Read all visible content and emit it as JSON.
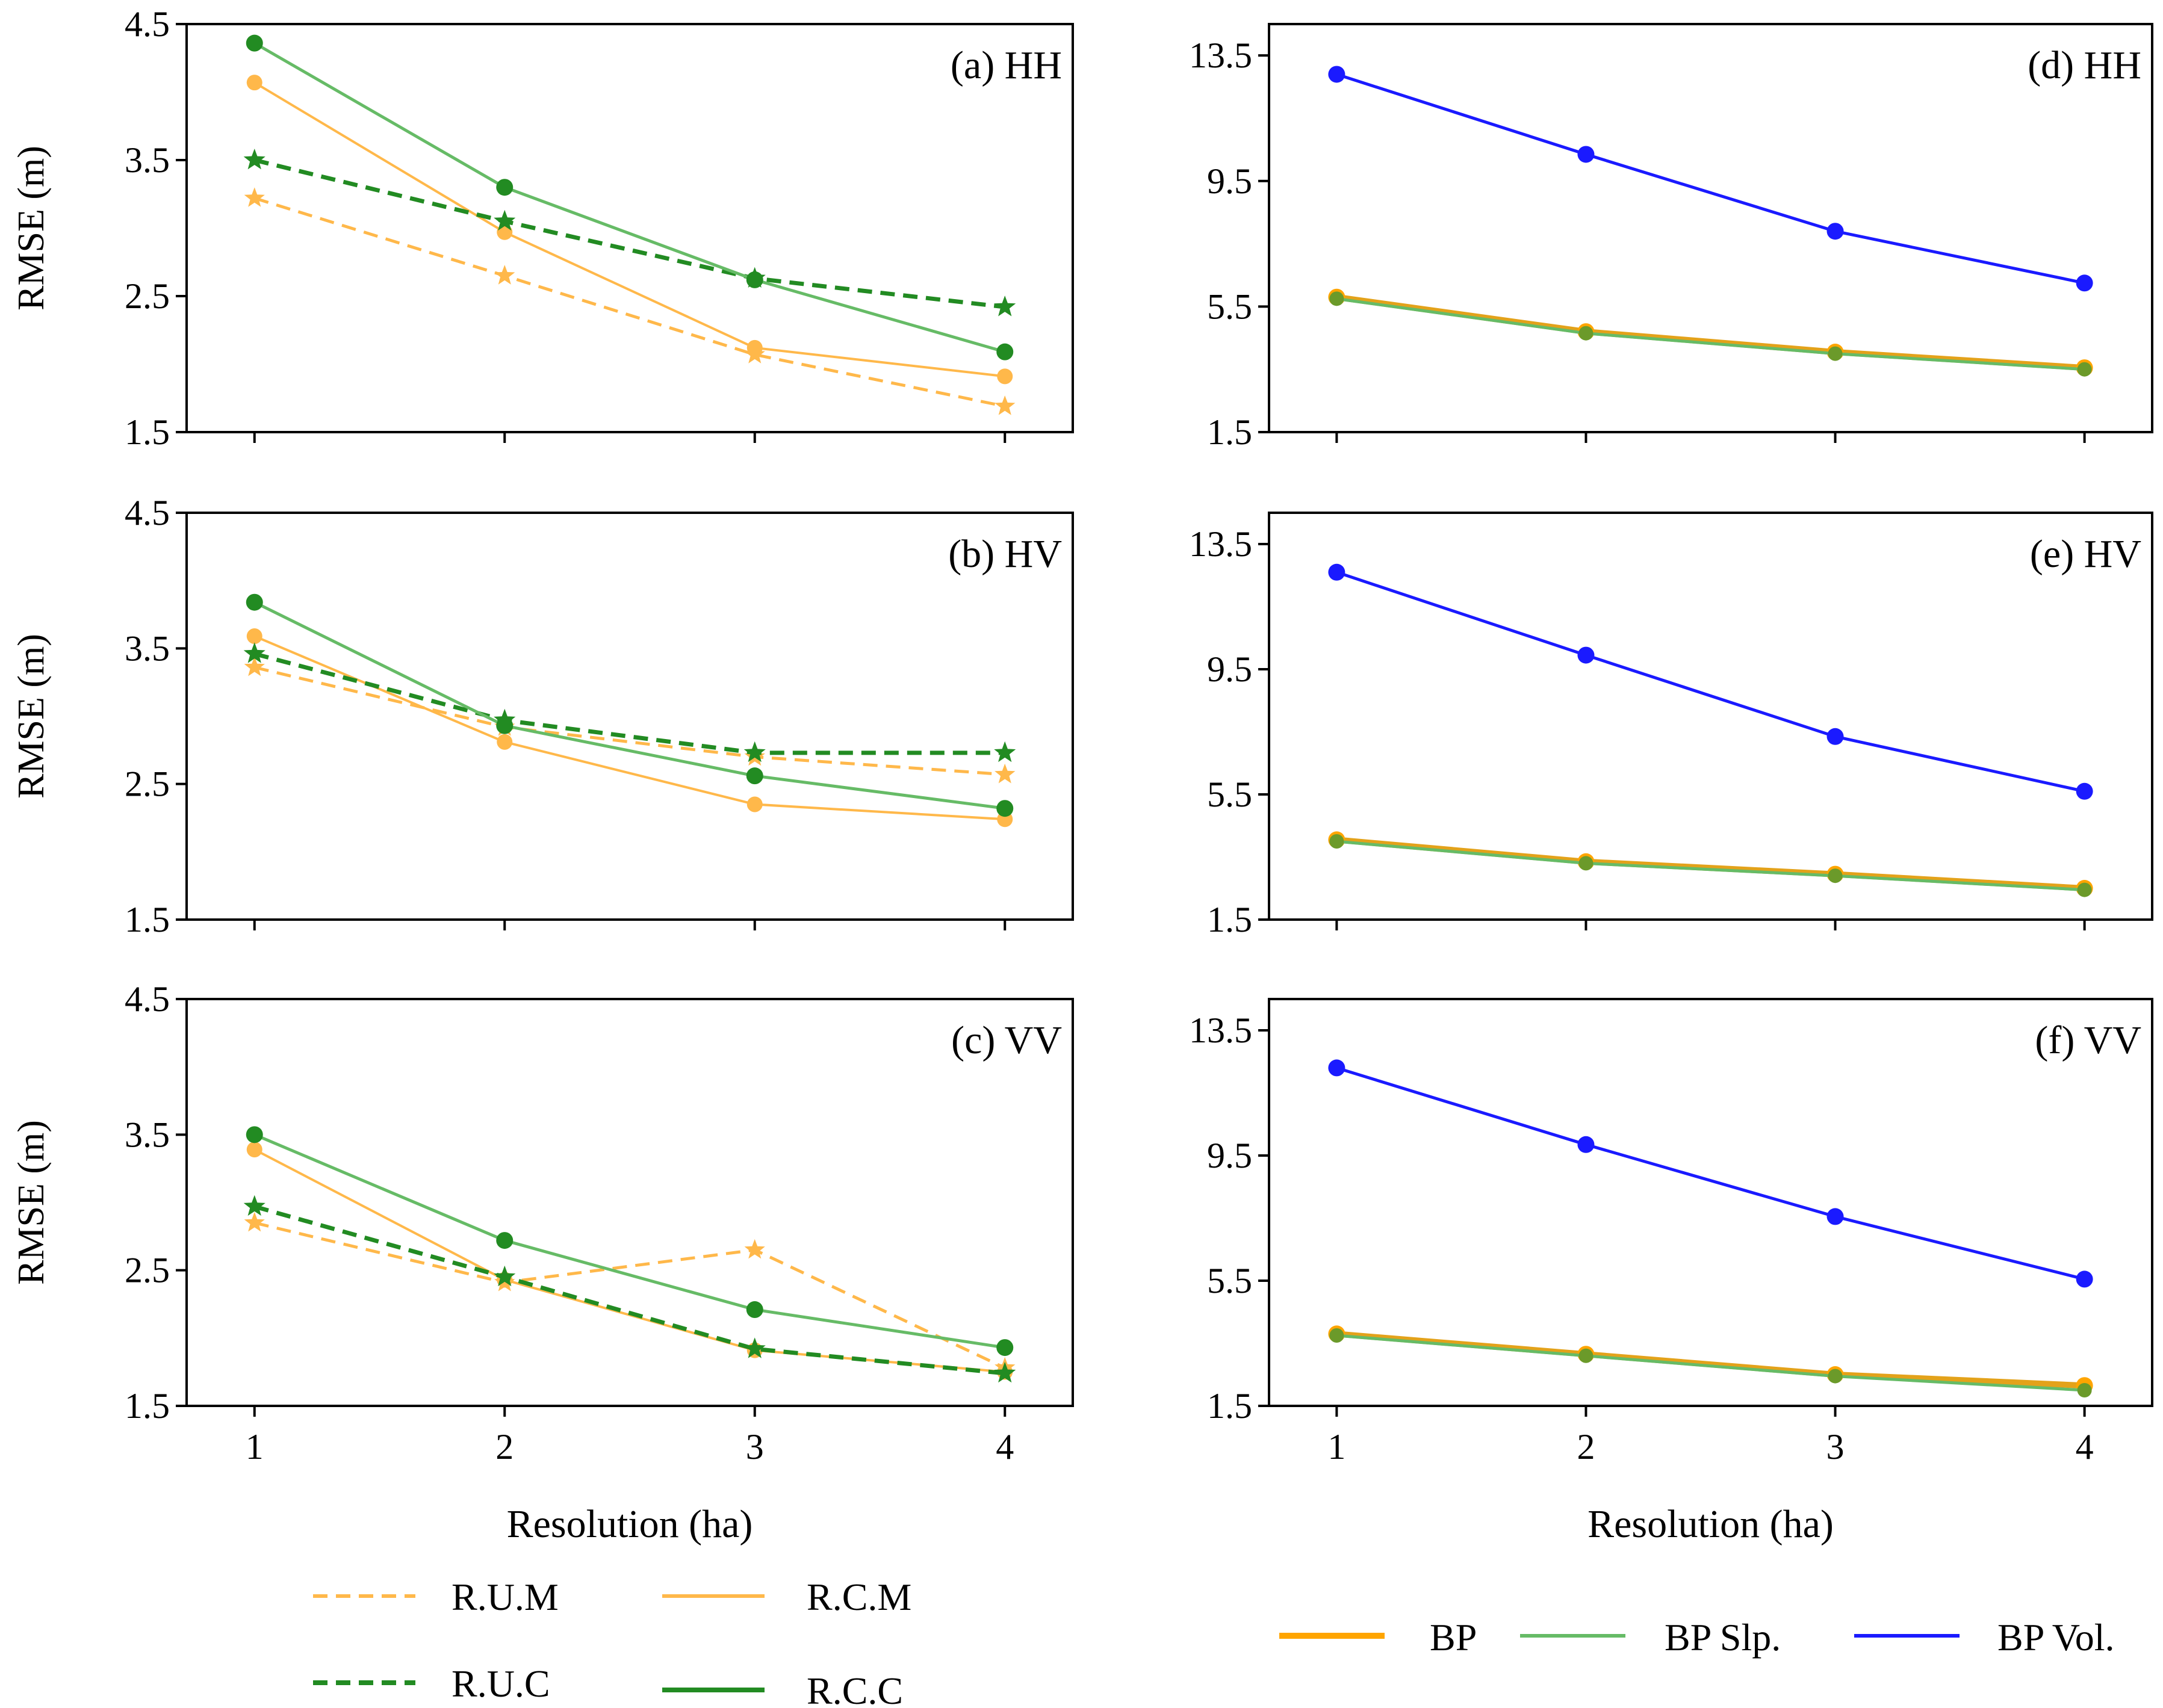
{
  "chart_data": [
    {
      "type": "line",
      "title": "(a) HH",
      "xlabel": "",
      "ylabel": "RMSE (m)",
      "x": [
        1,
        2,
        3,
        4
      ],
      "xticks": [
        "1",
        "2",
        "3",
        "4"
      ],
      "ylim": [
        1.5,
        4.5
      ],
      "yticks": [
        "1.5",
        "2.5",
        "3.5",
        "4.5"
      ],
      "series": [
        {
          "name": "R.U.M",
          "values": [
            3.22,
            2.65,
            2.07,
            1.69
          ]
        },
        {
          "name": "R.C.M",
          "values": [
            4.07,
            2.97,
            2.12,
            1.91
          ]
        },
        {
          "name": "R.U.C",
          "values": [
            3.5,
            3.05,
            2.63,
            2.42
          ]
        },
        {
          "name": "R.C.C",
          "values": [
            4.36,
            3.3,
            2.62,
            2.09
          ]
        }
      ]
    },
    {
      "type": "line",
      "title": "(b) HV",
      "xlabel": "",
      "ylabel": "RMSE (m)",
      "x": [
        1,
        2,
        3,
        4
      ],
      "xticks": [
        "1",
        "2",
        "3",
        "4"
      ],
      "ylim": [
        1.5,
        4.5
      ],
      "yticks": [
        "1.5",
        "2.5",
        "3.5",
        "4.5"
      ],
      "series": [
        {
          "name": "R.U.M",
          "values": [
            3.36,
            2.92,
            2.7,
            2.57
          ]
        },
        {
          "name": "R.C.M",
          "values": [
            3.59,
            2.81,
            2.35,
            2.24
          ]
        },
        {
          "name": "R.U.C",
          "values": [
            3.46,
            2.97,
            2.73,
            2.73
          ]
        },
        {
          "name": "R.C.C",
          "values": [
            3.84,
            2.93,
            2.56,
            2.32
          ]
        }
      ]
    },
    {
      "type": "line",
      "title": "(c) VV",
      "xlabel": "Resolution (ha)",
      "ylabel": "RMSE (m)",
      "x": [
        1,
        2,
        3,
        4
      ],
      "xticks": [
        "1",
        "2",
        "3",
        "4"
      ],
      "ylim": [
        1.5,
        4.5
      ],
      "yticks": [
        "1.5",
        "2.5",
        "3.5",
        "4.5"
      ],
      "series": [
        {
          "name": "R.U.M",
          "values": [
            2.85,
            2.41,
            2.65,
            1.78
          ]
        },
        {
          "name": "R.C.M",
          "values": [
            3.39,
            2.43,
            1.91,
            1.75
          ]
        },
        {
          "name": "R.U.C",
          "values": [
            2.97,
            2.45,
            1.92,
            1.74
          ]
        },
        {
          "name": "R.C.C",
          "values": [
            3.5,
            2.72,
            2.21,
            1.93
          ]
        }
      ]
    },
    {
      "type": "line",
      "title": "(d) HH",
      "xlabel": "",
      "ylabel": "",
      "x": [
        1,
        2,
        3,
        4
      ],
      "xticks": [
        "1",
        "2",
        "3",
        "4"
      ],
      "ylim": [
        1.5,
        14.5
      ],
      "yticks": [
        "1.5",
        "5.5",
        "9.5",
        "13.5"
      ],
      "series": [
        {
          "name": "BP",
          "values": [
            5.8,
            4.7,
            4.05,
            3.55
          ]
        },
        {
          "name": "BP Slp.",
          "values": [
            5.75,
            4.65,
            4.0,
            3.5
          ]
        },
        {
          "name": "BP Vol.",
          "values": [
            12.9,
            10.35,
            7.9,
            6.25
          ]
        }
      ]
    },
    {
      "type": "line",
      "title": "(e) HV",
      "xlabel": "",
      "ylabel": "",
      "x": [
        1,
        2,
        3,
        4
      ],
      "xticks": [
        "1",
        "2",
        "3",
        "4"
      ],
      "ylim": [
        1.5,
        14.5
      ],
      "yticks": [
        "1.5",
        "5.5",
        "9.5",
        "13.5"
      ],
      "series": [
        {
          "name": "BP",
          "values": [
            4.05,
            3.35,
            2.95,
            2.5
          ]
        },
        {
          "name": "BP Slp.",
          "values": [
            4.0,
            3.3,
            2.9,
            2.45
          ]
        },
        {
          "name": "BP Vol.",
          "values": [
            12.6,
            9.95,
            7.35,
            5.6
          ]
        }
      ]
    },
    {
      "type": "line",
      "title": "(f) VV",
      "xlabel": "Resolution (ha)",
      "ylabel": "",
      "x": [
        1,
        2,
        3,
        4
      ],
      "xticks": [
        "1",
        "2",
        "3",
        "4"
      ],
      "ylim": [
        1.5,
        14.5
      ],
      "yticks": [
        "1.5",
        "5.5",
        "9.5",
        "13.5"
      ],
      "series": [
        {
          "name": "BP",
          "values": [
            3.8,
            3.15,
            2.5,
            2.15
          ]
        },
        {
          "name": "BP Slp.",
          "values": [
            3.75,
            3.1,
            2.45,
            2.0
          ]
        },
        {
          "name": "BP Vol.",
          "values": [
            12.3,
            9.85,
            7.55,
            5.55
          ]
        }
      ]
    }
  ],
  "legend_left": [
    "R.U.M",
    "R.C.M",
    "R.U.C",
    "R.C.C"
  ],
  "legend_right": [
    "BP",
    "BP Slp.",
    "BP Vol."
  ],
  "colors": {
    "orange": "#ffb84a",
    "orange_dark": "#ffa500",
    "green": "#228b22",
    "green_light": "#66bb66",
    "blue": "#1a1aff",
    "bp_line": "#e3a21a"
  }
}
